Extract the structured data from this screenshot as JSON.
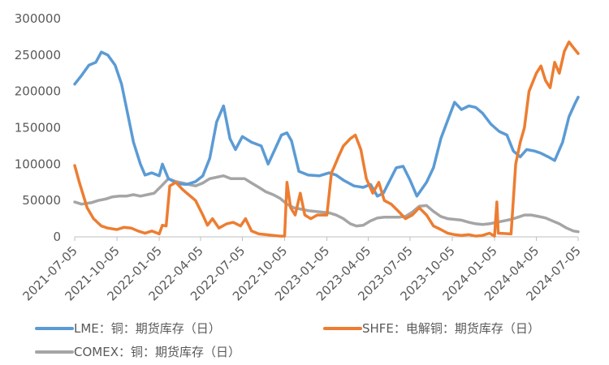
{
  "chart_data": {
    "type": "line",
    "title": "",
    "xlabel": "",
    "ylabel": "",
    "ylim": [
      0,
      300000
    ],
    "yticks": [
      0,
      50000,
      100000,
      150000,
      200000,
      250000,
      300000
    ],
    "ytick_labels": [
      "0",
      "50000",
      "100000",
      "150000",
      "200000",
      "250000",
      "300000"
    ],
    "xlim": [
      "2021-07-05",
      "2024-07-05"
    ],
    "xticks": [
      "2021-07-05",
      "2021-10-05",
      "2022-01-05",
      "2022-04-05",
      "2022-07-05",
      "2022-10-05",
      "2023-01-05",
      "2023-04-05",
      "2023-07-05",
      "2023-10-05",
      "2024-01-05",
      "2024-04-05",
      "2024-07-05"
    ],
    "grid": false,
    "legend_position": "bottom",
    "series": [
      {
        "name": "LME：铜：期货库存（日）",
        "color": "#5B9BD5",
        "points": [
          [
            "2021-07-05",
            210000
          ],
          [
            "2021-07-20",
            222000
          ],
          [
            "2021-08-05",
            236000
          ],
          [
            "2021-08-20",
            240000
          ],
          [
            "2021-09-01",
            254000
          ],
          [
            "2021-09-15",
            250000
          ],
          [
            "2021-10-01",
            236000
          ],
          [
            "2021-10-15",
            210000
          ],
          [
            "2021-10-28",
            170000
          ],
          [
            "2021-11-10",
            130000
          ],
          [
            "2021-11-25",
            100000
          ],
          [
            "2021-12-05",
            85000
          ],
          [
            "2021-12-20",
            88000
          ],
          [
            "2022-01-05",
            84000
          ],
          [
            "2022-01-12",
            100000
          ],
          [
            "2022-01-25",
            80000
          ],
          [
            "2022-02-15",
            73000
          ],
          [
            "2022-03-05",
            72000
          ],
          [
            "2022-03-25",
            76000
          ],
          [
            "2022-04-10",
            84000
          ],
          [
            "2022-04-25",
            108000
          ],
          [
            "2022-05-10",
            158000
          ],
          [
            "2022-05-25",
            180000
          ],
          [
            "2022-06-08",
            135000
          ],
          [
            "2022-06-20",
            120000
          ],
          [
            "2022-07-05",
            138000
          ],
          [
            "2022-07-25",
            130000
          ],
          [
            "2022-08-15",
            125000
          ],
          [
            "2022-08-30",
            100000
          ],
          [
            "2022-09-10",
            115000
          ],
          [
            "2022-09-28",
            140000
          ],
          [
            "2022-10-10",
            143000
          ],
          [
            "2022-10-20",
            132000
          ],
          [
            "2022-11-05",
            90000
          ],
          [
            "2022-11-25",
            85000
          ],
          [
            "2022-12-20",
            84000
          ],
          [
            "2023-01-10",
            88000
          ],
          [
            "2023-01-25",
            85000
          ],
          [
            "2023-02-10",
            78000
          ],
          [
            "2023-03-05",
            70000
          ],
          [
            "2023-03-25",
            68000
          ],
          [
            "2023-04-10",
            72000
          ],
          [
            "2023-04-25",
            56000
          ],
          [
            "2023-05-08",
            60000
          ],
          [
            "2023-05-20",
            75000
          ],
          [
            "2023-06-05",
            95000
          ],
          [
            "2023-06-20",
            97000
          ],
          [
            "2023-07-05",
            78000
          ],
          [
            "2023-07-20",
            56000
          ],
          [
            "2023-08-10",
            75000
          ],
          [
            "2023-08-25",
            95000
          ],
          [
            "2023-09-10",
            135000
          ],
          [
            "2023-09-28",
            165000
          ],
          [
            "2023-10-10",
            185000
          ],
          [
            "2023-10-25",
            175000
          ],
          [
            "2023-11-10",
            180000
          ],
          [
            "2023-11-25",
            178000
          ],
          [
            "2023-12-10",
            170000
          ],
          [
            "2023-12-28",
            155000
          ],
          [
            "2024-01-15",
            145000
          ],
          [
            "2024-02-01",
            140000
          ],
          [
            "2024-02-15",
            118000
          ],
          [
            "2024-03-01",
            110000
          ],
          [
            "2024-03-15",
            120000
          ],
          [
            "2024-04-01",
            118000
          ],
          [
            "2024-04-15",
            115000
          ],
          [
            "2024-05-01",
            110000
          ],
          [
            "2024-05-15",
            105000
          ],
          [
            "2024-06-01",
            130000
          ],
          [
            "2024-06-15",
            165000
          ],
          [
            "2024-06-28",
            183000
          ],
          [
            "2024-07-05",
            192000
          ]
        ]
      },
      {
        "name": "SHFE：电解铜：期货库存（日）",
        "color": "#ED7D31",
        "points": [
          [
            "2021-07-05",
            98000
          ],
          [
            "2021-07-15",
            75000
          ],
          [
            "2021-08-01",
            40000
          ],
          [
            "2021-08-15",
            25000
          ],
          [
            "2021-09-01",
            15000
          ],
          [
            "2021-09-15",
            12000
          ],
          [
            "2021-10-05",
            10000
          ],
          [
            "2021-10-20",
            13000
          ],
          [
            "2021-11-05",
            12000
          ],
          [
            "2021-11-20",
            8000
          ],
          [
            "2021-12-05",
            5000
          ],
          [
            "2021-12-20",
            8000
          ],
          [
            "2022-01-05",
            4000
          ],
          [
            "2022-01-12",
            16000
          ],
          [
            "2022-01-20",
            15000
          ],
          [
            "2022-01-28",
            70000
          ],
          [
            "2022-02-10",
            75000
          ],
          [
            "2022-02-25",
            65000
          ],
          [
            "2022-03-10",
            58000
          ],
          [
            "2022-03-25",
            50000
          ],
          [
            "2022-04-10",
            30000
          ],
          [
            "2022-04-20",
            16000
          ],
          [
            "2022-05-01",
            25000
          ],
          [
            "2022-05-15",
            12000
          ],
          [
            "2022-06-01",
            18000
          ],
          [
            "2022-06-15",
            20000
          ],
          [
            "2022-07-01",
            15000
          ],
          [
            "2022-07-12",
            25000
          ],
          [
            "2022-07-25",
            8000
          ],
          [
            "2022-08-10",
            4000
          ],
          [
            "2022-08-25",
            3000
          ],
          [
            "2022-09-10",
            2000
          ],
          [
            "2022-09-25",
            1000
          ],
          [
            "2022-10-05",
            1000
          ],
          [
            "2022-10-10",
            75000
          ],
          [
            "2022-10-18",
            40000
          ],
          [
            "2022-10-28",
            30000
          ],
          [
            "2022-11-08",
            60000
          ],
          [
            "2022-11-18",
            30000
          ],
          [
            "2022-12-01",
            25000
          ],
          [
            "2022-12-15",
            30000
          ],
          [
            "2023-01-05",
            30000
          ],
          [
            "2023-01-15",
            88000
          ],
          [
            "2023-01-20",
            95000
          ],
          [
            "2023-01-30",
            110000
          ],
          [
            "2023-02-10",
            125000
          ],
          [
            "2023-02-25",
            135000
          ],
          [
            "2023-03-08",
            140000
          ],
          [
            "2023-03-20",
            120000
          ],
          [
            "2023-04-01",
            80000
          ],
          [
            "2023-04-15",
            60000
          ],
          [
            "2023-04-28",
            75000
          ],
          [
            "2023-05-10",
            50000
          ],
          [
            "2023-05-25",
            45000
          ],
          [
            "2023-06-10",
            35000
          ],
          [
            "2023-06-25",
            25000
          ],
          [
            "2023-07-10",
            30000
          ],
          [
            "2023-07-25",
            40000
          ],
          [
            "2023-08-10",
            30000
          ],
          [
            "2023-08-25",
            15000
          ],
          [
            "2023-09-10",
            10000
          ],
          [
            "2023-09-25",
            5000
          ],
          [
            "2023-10-10",
            3000
          ],
          [
            "2023-10-25",
            2000
          ],
          [
            "2023-11-10",
            3000
          ],
          [
            "2023-11-25",
            1000
          ],
          [
            "2023-12-10",
            2000
          ],
          [
            "2023-12-25",
            5000
          ],
          [
            "2024-01-05",
            1000
          ],
          [
            "2024-01-10",
            48000
          ],
          [
            "2024-01-13",
            5000
          ],
          [
            "2024-02-10",
            4000
          ],
          [
            "2024-02-20",
            100000
          ],
          [
            "2024-03-01",
            130000
          ],
          [
            "2024-03-10",
            150000
          ],
          [
            "2024-03-20",
            200000
          ],
          [
            "2024-04-05",
            225000
          ],
          [
            "2024-04-15",
            235000
          ],
          [
            "2024-04-25",
            215000
          ],
          [
            "2024-05-05",
            205000
          ],
          [
            "2024-05-15",
            240000
          ],
          [
            "2024-05-25",
            225000
          ],
          [
            "2024-06-05",
            255000
          ],
          [
            "2024-06-15",
            268000
          ],
          [
            "2024-06-25",
            260000
          ],
          [
            "2024-07-05",
            252000
          ]
        ]
      },
      {
        "name": "COMEX：铜：期货库存（日）",
        "color": "#A5A5A5",
        "points": [
          [
            "2021-07-05",
            48000
          ],
          [
            "2021-07-20",
            45000
          ],
          [
            "2021-08-10",
            47000
          ],
          [
            "2021-08-25",
            50000
          ],
          [
            "2021-09-10",
            52000
          ],
          [
            "2021-09-25",
            55000
          ],
          [
            "2021-10-10",
            56000
          ],
          [
            "2021-10-25",
            56000
          ],
          [
            "2021-11-10",
            58000
          ],
          [
            "2021-11-25",
            56000
          ],
          [
            "2021-12-10",
            58000
          ],
          [
            "2021-12-25",
            60000
          ],
          [
            "2022-01-10",
            70000
          ],
          [
            "2022-01-25",
            80000
          ],
          [
            "2022-02-10",
            76000
          ],
          [
            "2022-02-25",
            74000
          ],
          [
            "2022-03-10",
            72000
          ],
          [
            "2022-03-25",
            70000
          ],
          [
            "2022-04-10",
            74000
          ],
          [
            "2022-04-25",
            80000
          ],
          [
            "2022-05-10",
            82000
          ],
          [
            "2022-05-25",
            84000
          ],
          [
            "2022-06-10",
            80000
          ],
          [
            "2022-06-25",
            80000
          ],
          [
            "2022-07-10",
            80000
          ],
          [
            "2022-07-25",
            74000
          ],
          [
            "2022-08-10",
            68000
          ],
          [
            "2022-08-25",
            62000
          ],
          [
            "2022-09-10",
            58000
          ],
          [
            "2022-09-25",
            53000
          ],
          [
            "2022-10-10",
            45000
          ],
          [
            "2022-10-25",
            40000
          ],
          [
            "2022-11-10",
            38000
          ],
          [
            "2022-11-25",
            36000
          ],
          [
            "2022-12-10",
            35000
          ],
          [
            "2022-12-25",
            34000
          ],
          [
            "2023-01-10",
            33000
          ],
          [
            "2023-01-25",
            30000
          ],
          [
            "2023-02-10",
            25000
          ],
          [
            "2023-02-25",
            18000
          ],
          [
            "2023-03-10",
            15000
          ],
          [
            "2023-03-25",
            16000
          ],
          [
            "2023-04-10",
            22000
          ],
          [
            "2023-04-25",
            26000
          ],
          [
            "2023-05-10",
            27000
          ],
          [
            "2023-05-25",
            27000
          ],
          [
            "2023-06-10",
            27000
          ],
          [
            "2023-06-25",
            28000
          ],
          [
            "2023-07-10",
            34000
          ],
          [
            "2023-07-25",
            42000
          ],
          [
            "2023-08-10",
            43000
          ],
          [
            "2023-08-25",
            35000
          ],
          [
            "2023-09-10",
            28000
          ],
          [
            "2023-09-25",
            25000
          ],
          [
            "2023-10-10",
            24000
          ],
          [
            "2023-10-25",
            23000
          ],
          [
            "2023-11-10",
            20000
          ],
          [
            "2023-11-25",
            18000
          ],
          [
            "2023-12-10",
            17000
          ],
          [
            "2023-12-25",
            18000
          ],
          [
            "2024-01-10",
            20000
          ],
          [
            "2024-01-25",
            22000
          ],
          [
            "2024-02-10",
            24000
          ],
          [
            "2024-02-25",
            27000
          ],
          [
            "2024-03-10",
            30000
          ],
          [
            "2024-03-25",
            30000
          ],
          [
            "2024-04-10",
            28000
          ],
          [
            "2024-04-25",
            26000
          ],
          [
            "2024-05-10",
            22000
          ],
          [
            "2024-05-25",
            18000
          ],
          [
            "2024-06-10",
            12000
          ],
          [
            "2024-06-25",
            8000
          ],
          [
            "2024-07-05",
            7000
          ]
        ]
      }
    ]
  }
}
